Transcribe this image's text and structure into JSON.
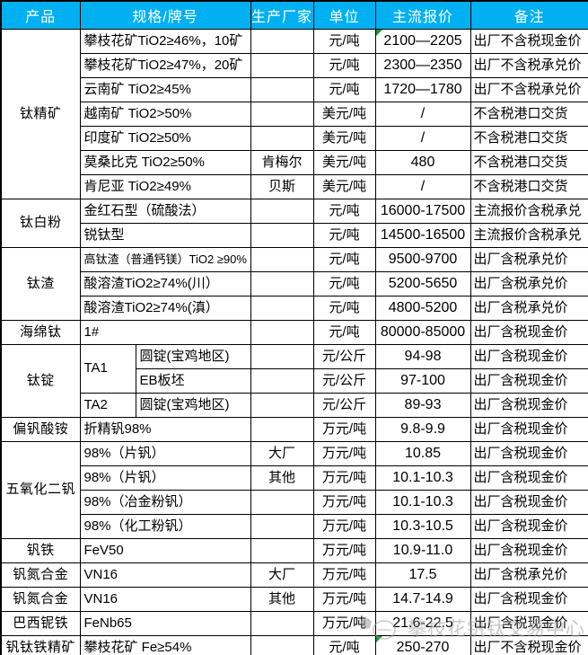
{
  "colors": {
    "header_bg": "#00B0F0",
    "header_text": "#FFFFFF",
    "border": "#000000",
    "flag_green": "#149b2e",
    "watermark_gray": "#9e9e9e"
  },
  "table": {
    "columns": [
      "产品",
      "规格/牌号",
      "生产厂家",
      "单位",
      "主流报价",
      "备注"
    ],
    "groups": [
      {
        "product": "钛精矿",
        "rows": [
          {
            "spec": "攀枝花矿TiO2≥46%，10矿",
            "maker": "",
            "unit": "元/吨",
            "price": "2100—2205",
            "note": "出厂不含税现金价",
            "flag": true
          },
          {
            "spec": "攀枝花矿TiO2≥47%，20矿",
            "maker": "",
            "unit": "元/吨",
            "price": "2300—2350",
            "note": "出厂不含税承兑价"
          },
          {
            "spec": "云南矿 TiO2≥45%",
            "maker": "",
            "unit": "元/吨",
            "price": "1720—1780",
            "note": "出厂不含税承兑价"
          },
          {
            "spec": "越南矿 TiO2>50%",
            "maker": "",
            "unit": "美元/吨",
            "price": "/",
            "note": "不含税港口交货"
          },
          {
            "spec": "印度矿 TiO2≥50%",
            "maker": "",
            "unit": "美元/吨",
            "price": "/",
            "note": "不含税港口交货"
          },
          {
            "spec": "莫桑比克 TiO2≥50%",
            "maker": "肯梅尔",
            "unit": "美元/吨",
            "price": "480",
            "note": "不含税港口交货"
          },
          {
            "spec": "肯尼亚 TiO2≥49%",
            "maker": "贝斯",
            "unit": "美元/吨",
            "price": "/",
            "note": "不含税港口交货"
          }
        ]
      },
      {
        "product": "钛白粉",
        "rows": [
          {
            "spec": "金红石型（硫酸法）",
            "maker": "",
            "unit": "元/吨",
            "price": "16000-17500",
            "note": "主流报价含税承兑"
          },
          {
            "spec": "锐钛型",
            "maker": "",
            "unit": "元/吨",
            "price": "14500-16500",
            "note": "主流报价含税承兑"
          }
        ]
      },
      {
        "product": "钛渣",
        "rows": [
          {
            "spec": "高钛渣（普通钙镁）TiO2 ≥90%",
            "maker": "",
            "unit": "元/吨",
            "price": "9500-9700",
            "note": "出厂含税承兑价"
          },
          {
            "spec": "酸溶渣TiO2≥74%(川）",
            "maker": "",
            "unit": "元/吨",
            "price": "5200-5650",
            "note": "出厂含税承兑价"
          },
          {
            "spec": "酸溶渣TiO2≥74%(滇）",
            "maker": "",
            "unit": "元/吨",
            "price": "4800-5200",
            "note": "出厂含税承兑价"
          }
        ]
      },
      {
        "product": "海绵钛",
        "rows": [
          {
            "spec": "1#",
            "maker": "",
            "unit": "元/吨",
            "price": "80000-85000",
            "note": "出厂含税现金价"
          }
        ]
      },
      {
        "product": "钛锭",
        "rows": [
          {
            "grade": "TA1",
            "grade_rowspan": 2,
            "spec": "圆锭(宝鸡地区)",
            "maker": "",
            "unit": "元/公斤",
            "price": "94-98",
            "note": "出厂含税现金价"
          },
          {
            "skip_grade": true,
            "spec": "EB板坯",
            "maker": "",
            "unit": "元/公斤",
            "price": "97-100",
            "note": "出厂含税现金价"
          },
          {
            "grade": "TA2",
            "grade_rowspan": 1,
            "spec": "圆锭(宝鸡地区)",
            "maker": "",
            "unit": "元/公斤",
            "price": "89-93",
            "note": "出厂含税现金价"
          }
        ]
      },
      {
        "product": "偏钒酸铵",
        "rows": [
          {
            "spec": "折精钒98%",
            "maker": "",
            "unit": "万元/吨",
            "price": "9.8-9.9",
            "note": "出厂含税现金价"
          }
        ]
      },
      {
        "product": "五氧化二钒",
        "rows": [
          {
            "spec": "98%（片钒）",
            "maker": "大厂",
            "unit": "万元/吨",
            "price": "10.85",
            "note": "出厂含税现金价"
          },
          {
            "spec": "98%（片钒）",
            "maker": "其他",
            "unit": "万元/吨",
            "price": "10.1-10.3",
            "note": "出厂含税现金价"
          },
          {
            "spec": "98%（冶金粉钒）",
            "maker": "",
            "unit": "万元/吨",
            "price": "10.1-10.3",
            "note": "出厂含税现金价"
          },
          {
            "spec": "98%（化工粉钒）",
            "maker": "",
            "unit": "万元/吨",
            "price": "10.3-10.5",
            "note": "出厂含税现金价"
          }
        ]
      },
      {
        "product": "钒铁",
        "rows": [
          {
            "spec": "FeV50",
            "maker": "",
            "unit": "万元/吨",
            "price": "10.9-11.0",
            "note": "出厂含税现金价"
          }
        ]
      },
      {
        "product": "钒氮合金",
        "rows": [
          {
            "spec": "VN16",
            "maker": "大厂",
            "unit": "万元/吨",
            "price": "17.5",
            "note": "出厂含税承兑价"
          }
        ]
      },
      {
        "product": "钒氮合金",
        "rows": [
          {
            "spec": "VN16",
            "maker": "其他",
            "unit": "万元/吨",
            "price": "14.7-14.9",
            "note": "出厂含税现金价"
          }
        ]
      },
      {
        "product": "巴西铌铁",
        "rows": [
          {
            "spec": "FeNb65",
            "maker": "",
            "unit": "万元/吨",
            "price": "21.6-22.5",
            "note": "出厂含税现金价"
          }
        ]
      },
      {
        "product": "钒钛铁精矿",
        "rows": [
          {
            "spec": "攀枝花矿 Fe≥54%",
            "maker": "",
            "unit": "元/吨",
            "price": "250-270",
            "note": "出厂不含税现金价",
            "flag": true
          }
        ]
      }
    ]
  },
  "watermark": {
    "text": "攀枝花钒钛交易中心"
  }
}
